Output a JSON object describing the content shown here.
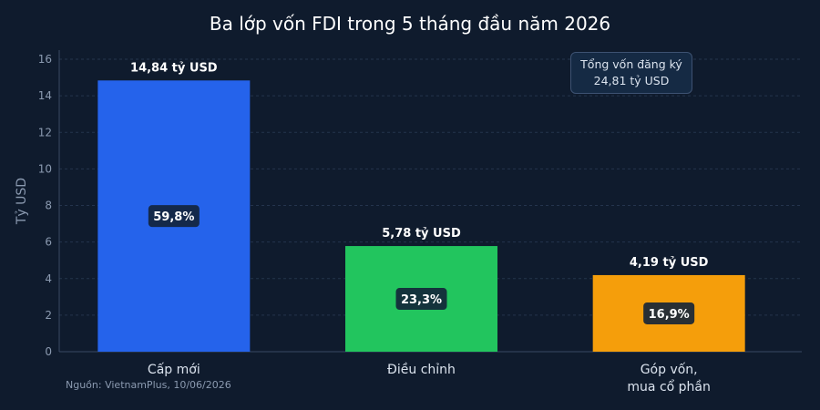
{
  "title": "Ba lớp vốn FDI trong 5 tháng đầu năm 2026",
  "source": "Nguồn: VietnamPlus, 10/06/2026",
  "annotation": {
    "line1": "Tổng vốn đăng ký",
    "line2": "24,81 tỷ USD"
  },
  "colors": {
    "background": "#0f1b2d",
    "bars": [
      "#2563eb",
      "#22c55e",
      "#f59e0b"
    ],
    "grid": "#24344d",
    "axis_text": "#8b9ab0"
  },
  "chart_data": {
    "type": "bar",
    "categories": [
      [
        "Cấp mới"
      ],
      [
        "Điều chỉnh"
      ],
      [
        "Góp vốn,",
        "mua cổ phần"
      ]
    ],
    "values": [
      14.84,
      5.78,
      4.19
    ],
    "value_labels": [
      "14,84 tỷ USD",
      "5,78 tỷ USD",
      "4,19 tỷ USD"
    ],
    "share_labels": [
      "59,8%",
      "23,3%",
      "16,9%"
    ],
    "ylabel": "Tỷ USD",
    "ylim": [
      0,
      16.5
    ],
    "yticks": [
      0,
      2,
      4,
      6,
      8,
      10,
      12,
      14,
      16
    ],
    "grid": true,
    "legend": "none"
  }
}
